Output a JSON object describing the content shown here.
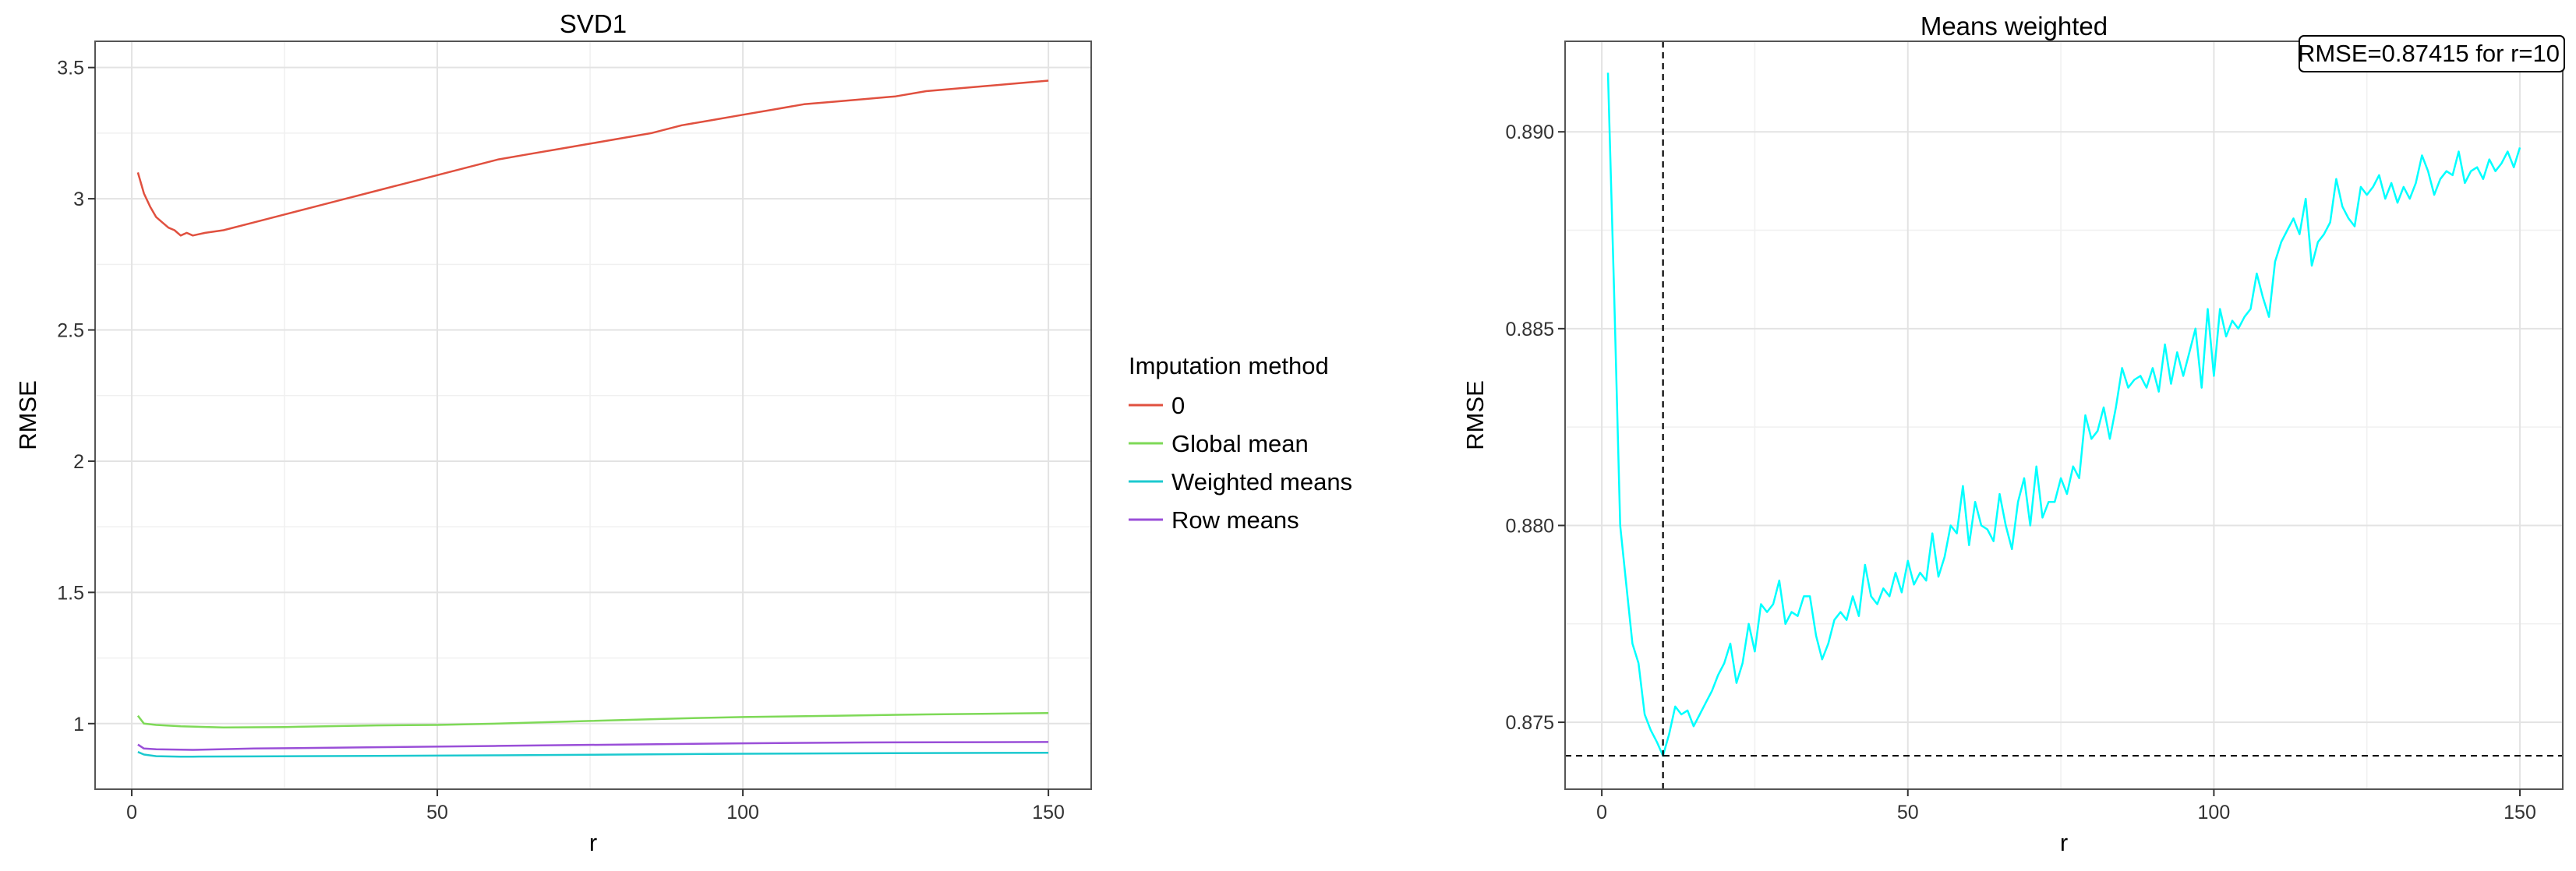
{
  "chart_data": [
    {
      "type": "line",
      "title": "SVD1",
      "xlabel": "r",
      "ylabel": "RMSE",
      "xlim": [
        -6,
        157
      ],
      "ylim": [
        0.75,
        3.6
      ],
      "x_ticks": [
        0,
        50,
        100,
        150
      ],
      "x_tick_labels": [
        "0",
        "50",
        "100",
        "150"
      ],
      "y_ticks": [
        1,
        1.5,
        2,
        2.5,
        3,
        3.5
      ],
      "y_tick_labels": [
        "1",
        "1.5",
        "2",
        "2.5",
        "3",
        "3.5"
      ],
      "grid": true,
      "legend": {
        "title": "Imputation method",
        "placement": "right"
      },
      "series": [
        {
          "name": "0",
          "color": "#e0503f",
          "points": [
            [
              1,
              3.1
            ],
            [
              2,
              3.02
            ],
            [
              3,
              2.97
            ],
            [
              4,
              2.93
            ],
            [
              5,
              2.91
            ],
            [
              6,
              2.89
            ],
            [
              7,
              2.88
            ],
            [
              8,
              2.86
            ],
            [
              9,
              2.87
            ],
            [
              10,
              2.86
            ],
            [
              12,
              2.87
            ],
            [
              15,
              2.88
            ],
            [
              20,
              2.91
            ],
            [
              25,
              2.94
            ],
            [
              30,
              2.97
            ],
            [
              35,
              3.0
            ],
            [
              40,
              3.03
            ],
            [
              45,
              3.06
            ],
            [
              50,
              3.09
            ],
            [
              55,
              3.12
            ],
            [
              60,
              3.15
            ],
            [
              65,
              3.17
            ],
            [
              70,
              3.19
            ],
            [
              75,
              3.21
            ],
            [
              80,
              3.23
            ],
            [
              85,
              3.25
            ],
            [
              90,
              3.28
            ],
            [
              95,
              3.3
            ],
            [
              100,
              3.32
            ],
            [
              105,
              3.34
            ],
            [
              110,
              3.36
            ],
            [
              115,
              3.37
            ],
            [
              120,
              3.38
            ],
            [
              125,
              3.39
            ],
            [
              130,
              3.41
            ],
            [
              135,
              3.42
            ],
            [
              140,
              3.43
            ],
            [
              145,
              3.44
            ],
            [
              150,
              3.45
            ]
          ]
        },
        {
          "name": "Global mean",
          "color": "#7ed957",
          "points": [
            [
              1,
              1.03
            ],
            [
              2,
              1.0
            ],
            [
              4,
              0.995
            ],
            [
              8,
              0.99
            ],
            [
              15,
              0.985
            ],
            [
              25,
              0.987
            ],
            [
              40,
              0.993
            ],
            [
              50,
              0.995
            ],
            [
              60,
              1.0
            ],
            [
              75,
              1.01
            ],
            [
              90,
              1.02
            ],
            [
              100,
              1.025
            ],
            [
              115,
              1.03
            ],
            [
              130,
              1.035
            ],
            [
              150,
              1.04
            ]
          ]
        },
        {
          "name": "Weighted means",
          "color": "#1cc9cf",
          "points": [
            [
              1,
              0.892
            ],
            [
              2,
              0.882
            ],
            [
              4,
              0.876
            ],
            [
              8,
              0.874
            ],
            [
              10,
              0.874
            ],
            [
              20,
              0.875
            ],
            [
              40,
              0.877
            ],
            [
              60,
              0.879
            ],
            [
              80,
              0.882
            ],
            [
              100,
              0.885
            ],
            [
              120,
              0.887
            ],
            [
              150,
              0.889
            ]
          ]
        },
        {
          "name": "Row means",
          "color": "#9a4fd8",
          "points": [
            [
              1,
              0.92
            ],
            [
              2,
              0.905
            ],
            [
              4,
              0.902
            ],
            [
              10,
              0.9
            ],
            [
              20,
              0.905
            ],
            [
              40,
              0.91
            ],
            [
              60,
              0.915
            ],
            [
              80,
              0.92
            ],
            [
              100,
              0.925
            ],
            [
              120,
              0.928
            ],
            [
              150,
              0.93
            ]
          ]
        }
      ]
    },
    {
      "type": "line",
      "title": "Means weighted",
      "xlabel": "r",
      "ylabel": "RMSE",
      "xlim": [
        -6,
        157
      ],
      "ylim": [
        0.8733,
        0.8923
      ],
      "x_ticks": [
        0,
        50,
        100,
        150
      ],
      "x_tick_labels": [
        "0",
        "50",
        "100",
        "150"
      ],
      "y_ticks": [
        0.875,
        0.88,
        0.885,
        0.89
      ],
      "y_tick_labels": [
        "0.875",
        "0.880",
        "0.885",
        "0.890"
      ],
      "grid": true,
      "annotation": "RMSE=0.87415 for r=10",
      "annotation_placement": "top-right",
      "reference_lines": {
        "vline_x": 10,
        "hline_y": 0.87415
      },
      "series": [
        {
          "color": "#00ffff",
          "points": [
            [
              1,
              0.8915
            ],
            [
              2,
              0.886
            ],
            [
              3,
              0.88
            ],
            [
              4,
              0.8785
            ],
            [
              5,
              0.877
            ],
            [
              6,
              0.8765
            ],
            [
              7,
              0.8752
            ],
            [
              8,
              0.8748
            ],
            [
              9,
              0.8745
            ],
            [
              10,
              0.87415
            ],
            [
              11,
              0.8747
            ],
            [
              12,
              0.8754
            ],
            [
              13,
              0.8752
            ],
            [
              14,
              0.8753
            ],
            [
              15,
              0.8749
            ],
            [
              16,
              0.8752
            ],
            [
              17,
              0.8755
            ],
            [
              18,
              0.8758
            ],
            [
              19,
              0.8762
            ],
            [
              20,
              0.8765
            ],
            [
              21,
              0.877
            ],
            [
              22,
              0.876
            ],
            [
              23,
              0.8765
            ],
            [
              24,
              0.8775
            ],
            [
              25,
              0.8768
            ],
            [
              26,
              0.878
            ],
            [
              27,
              0.8778
            ],
            [
              28,
              0.878
            ],
            [
              29,
              0.8786
            ],
            [
              30,
              0.8775
            ],
            [
              31,
              0.8778
            ],
            [
              32,
              0.8777
            ],
            [
              33,
              0.8782
            ],
            [
              34,
              0.8782
            ],
            [
              35,
              0.8772
            ],
            [
              36,
              0.8766
            ],
            [
              37,
              0.877
            ],
            [
              38,
              0.8776
            ],
            [
              39,
              0.8778
            ],
            [
              40,
              0.8776
            ],
            [
              41,
              0.8782
            ],
            [
              42,
              0.8777
            ],
            [
              43,
              0.879
            ],
            [
              44,
              0.8782
            ],
            [
              45,
              0.878
            ],
            [
              46,
              0.8784
            ],
            [
              47,
              0.8782
            ],
            [
              48,
              0.8788
            ],
            [
              49,
              0.8783
            ],
            [
              50,
              0.8791
            ],
            [
              51,
              0.8785
            ],
            [
              52,
              0.8788
            ],
            [
              53,
              0.8786
            ],
            [
              54,
              0.8798
            ],
            [
              55,
              0.8787
            ],
            [
              56,
              0.8792
            ],
            [
              57,
              0.88
            ],
            [
              58,
              0.8798
            ],
            [
              59,
              0.881
            ],
            [
              60,
              0.8795
            ],
            [
              61,
              0.8806
            ],
            [
              62,
              0.88
            ],
            [
              63,
              0.8799
            ],
            [
              64,
              0.8796
            ],
            [
              65,
              0.8808
            ],
            [
              66,
              0.88
            ],
            [
              67,
              0.8794
            ],
            [
              68,
              0.8806
            ],
            [
              69,
              0.8812
            ],
            [
              70,
              0.88
            ],
            [
              71,
              0.8815
            ],
            [
              72,
              0.8802
            ],
            [
              73,
              0.8806
            ],
            [
              74,
              0.8806
            ],
            [
              75,
              0.8812
            ],
            [
              76,
              0.8808
            ],
            [
              77,
              0.8815
            ],
            [
              78,
              0.8812
            ],
            [
              79,
              0.8828
            ],
            [
              80,
              0.8822
            ],
            [
              81,
              0.8824
            ],
            [
              82,
              0.883
            ],
            [
              83,
              0.8822
            ],
            [
              84,
              0.883
            ],
            [
              85,
              0.884
            ],
            [
              86,
              0.8835
            ],
            [
              87,
              0.8837
            ],
            [
              88,
              0.8838
            ],
            [
              89,
              0.8835
            ],
            [
              90,
              0.884
            ],
            [
              91,
              0.8834
            ],
            [
              92,
              0.8846
            ],
            [
              93,
              0.8836
            ],
            [
              94,
              0.8844
            ],
            [
              95,
              0.8838
            ],
            [
              96,
              0.8844
            ],
            [
              97,
              0.885
            ],
            [
              98,
              0.8835
            ],
            [
              99,
              0.8855
            ],
            [
              100,
              0.8838
            ],
            [
              101,
              0.8855
            ],
            [
              102,
              0.8848
            ],
            [
              103,
              0.8852
            ],
            [
              104,
              0.885
            ],
            [
              105,
              0.8853
            ],
            [
              106,
              0.8855
            ],
            [
              107,
              0.8864
            ],
            [
              108,
              0.8858
            ],
            [
              109,
              0.8853
            ],
            [
              110,
              0.8867
            ],
            [
              111,
              0.8872
            ],
            [
              112,
              0.8875
            ],
            [
              113,
              0.8878
            ],
            [
              114,
              0.8874
            ],
            [
              115,
              0.8883
            ],
            [
              116,
              0.8866
            ],
            [
              117,
              0.8872
            ],
            [
              118,
              0.8874
            ],
            [
              119,
              0.8877
            ],
            [
              120,
              0.8888
            ],
            [
              121,
              0.8881
            ],
            [
              122,
              0.8878
            ],
            [
              123,
              0.8876
            ],
            [
              124,
              0.8886
            ],
            [
              125,
              0.8884
            ],
            [
              126,
              0.8886
            ],
            [
              127,
              0.8889
            ],
            [
              128,
              0.8883
            ],
            [
              129,
              0.8887
            ],
            [
              130,
              0.8882
            ],
            [
              131,
              0.8886
            ],
            [
              132,
              0.8883
            ],
            [
              133,
              0.8887
            ],
            [
              134,
              0.8894
            ],
            [
              135,
              0.889
            ],
            [
              136,
              0.8884
            ],
            [
              137,
              0.8888
            ],
            [
              138,
              0.889
            ],
            [
              139,
              0.8889
            ],
            [
              140,
              0.8895
            ],
            [
              141,
              0.8887
            ],
            [
              142,
              0.889
            ],
            [
              143,
              0.8891
            ],
            [
              144,
              0.8888
            ],
            [
              145,
              0.8893
            ],
            [
              146,
              0.889
            ],
            [
              147,
              0.8892
            ],
            [
              148,
              0.8895
            ],
            [
              149,
              0.8891
            ],
            [
              150,
              0.8896
            ]
          ]
        }
      ]
    }
  ]
}
